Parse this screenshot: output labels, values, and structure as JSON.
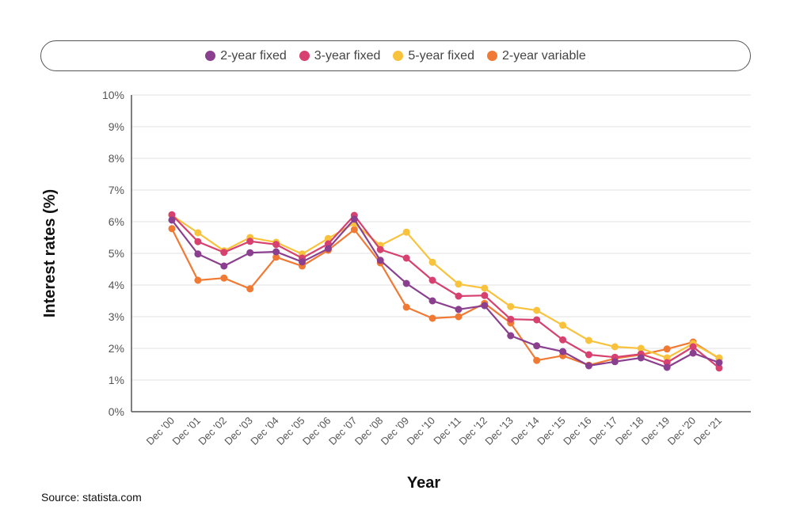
{
  "chart_data": {
    "type": "line",
    "xlabel": "Year",
    "ylabel": "Interest rates (%)",
    "ylim": [
      0,
      10
    ],
    "yticks": [
      "0%",
      "1%",
      "2%",
      "3%",
      "4%",
      "5%",
      "6%",
      "7%",
      "8%",
      "9%",
      "10%"
    ],
    "grid": true,
    "legend_position": "top",
    "categories": [
      "Dec '00",
      "Dec '01",
      "Dec '02",
      "Dec '03",
      "Dec '04",
      "Dec '05",
      "Dec '06",
      "Dec '07",
      "Dec '08",
      "Dec '09",
      "Dec '10",
      "Dec '11",
      "Dec '12",
      "Dec '13",
      "Dec '14",
      "Dec '15",
      "Dec '16",
      "Dec '17",
      "Dec '18",
      "Dec '19",
      "Dec '20",
      "Dec '21"
    ],
    "series": [
      {
        "name": "2-year fixed",
        "color": "#8b3f8f",
        "values": [
          6.05,
          4.98,
          4.6,
          5.02,
          5.05,
          4.73,
          5.15,
          6.08,
          4.78,
          4.05,
          3.5,
          3.23,
          3.35,
          2.4,
          2.08,
          1.9,
          1.45,
          1.58,
          1.7,
          1.4,
          1.85,
          1.55
        ]
      },
      {
        "name": "3-year fixed",
        "color": "#d6416f",
        "values": [
          6.22,
          5.37,
          5.03,
          5.38,
          5.28,
          4.85,
          5.3,
          6.2,
          5.12,
          4.85,
          4.15,
          3.65,
          3.67,
          2.92,
          2.9,
          2.27,
          1.8,
          1.72,
          1.82,
          1.55,
          2.05,
          1.38
        ]
      },
      {
        "name": "5-year fixed",
        "color": "#f9c23c",
        "values": [
          6.2,
          5.65,
          5.08,
          5.5,
          5.35,
          4.98,
          5.47,
          5.95,
          5.25,
          5.67,
          4.72,
          4.03,
          3.9,
          3.32,
          3.2,
          2.73,
          2.25,
          2.05,
          2.0,
          1.7,
          2.15,
          1.7
        ]
      },
      {
        "name": "2-year variable",
        "color": "#f07a33",
        "values": [
          5.78,
          4.15,
          4.22,
          3.88,
          4.88,
          4.6,
          5.1,
          5.75,
          4.7,
          3.3,
          2.95,
          3.0,
          3.42,
          2.8,
          1.62,
          1.77,
          1.47,
          1.68,
          1.8,
          1.98,
          2.2,
          1.68
        ]
      }
    ]
  },
  "source": "Source: statista.com"
}
